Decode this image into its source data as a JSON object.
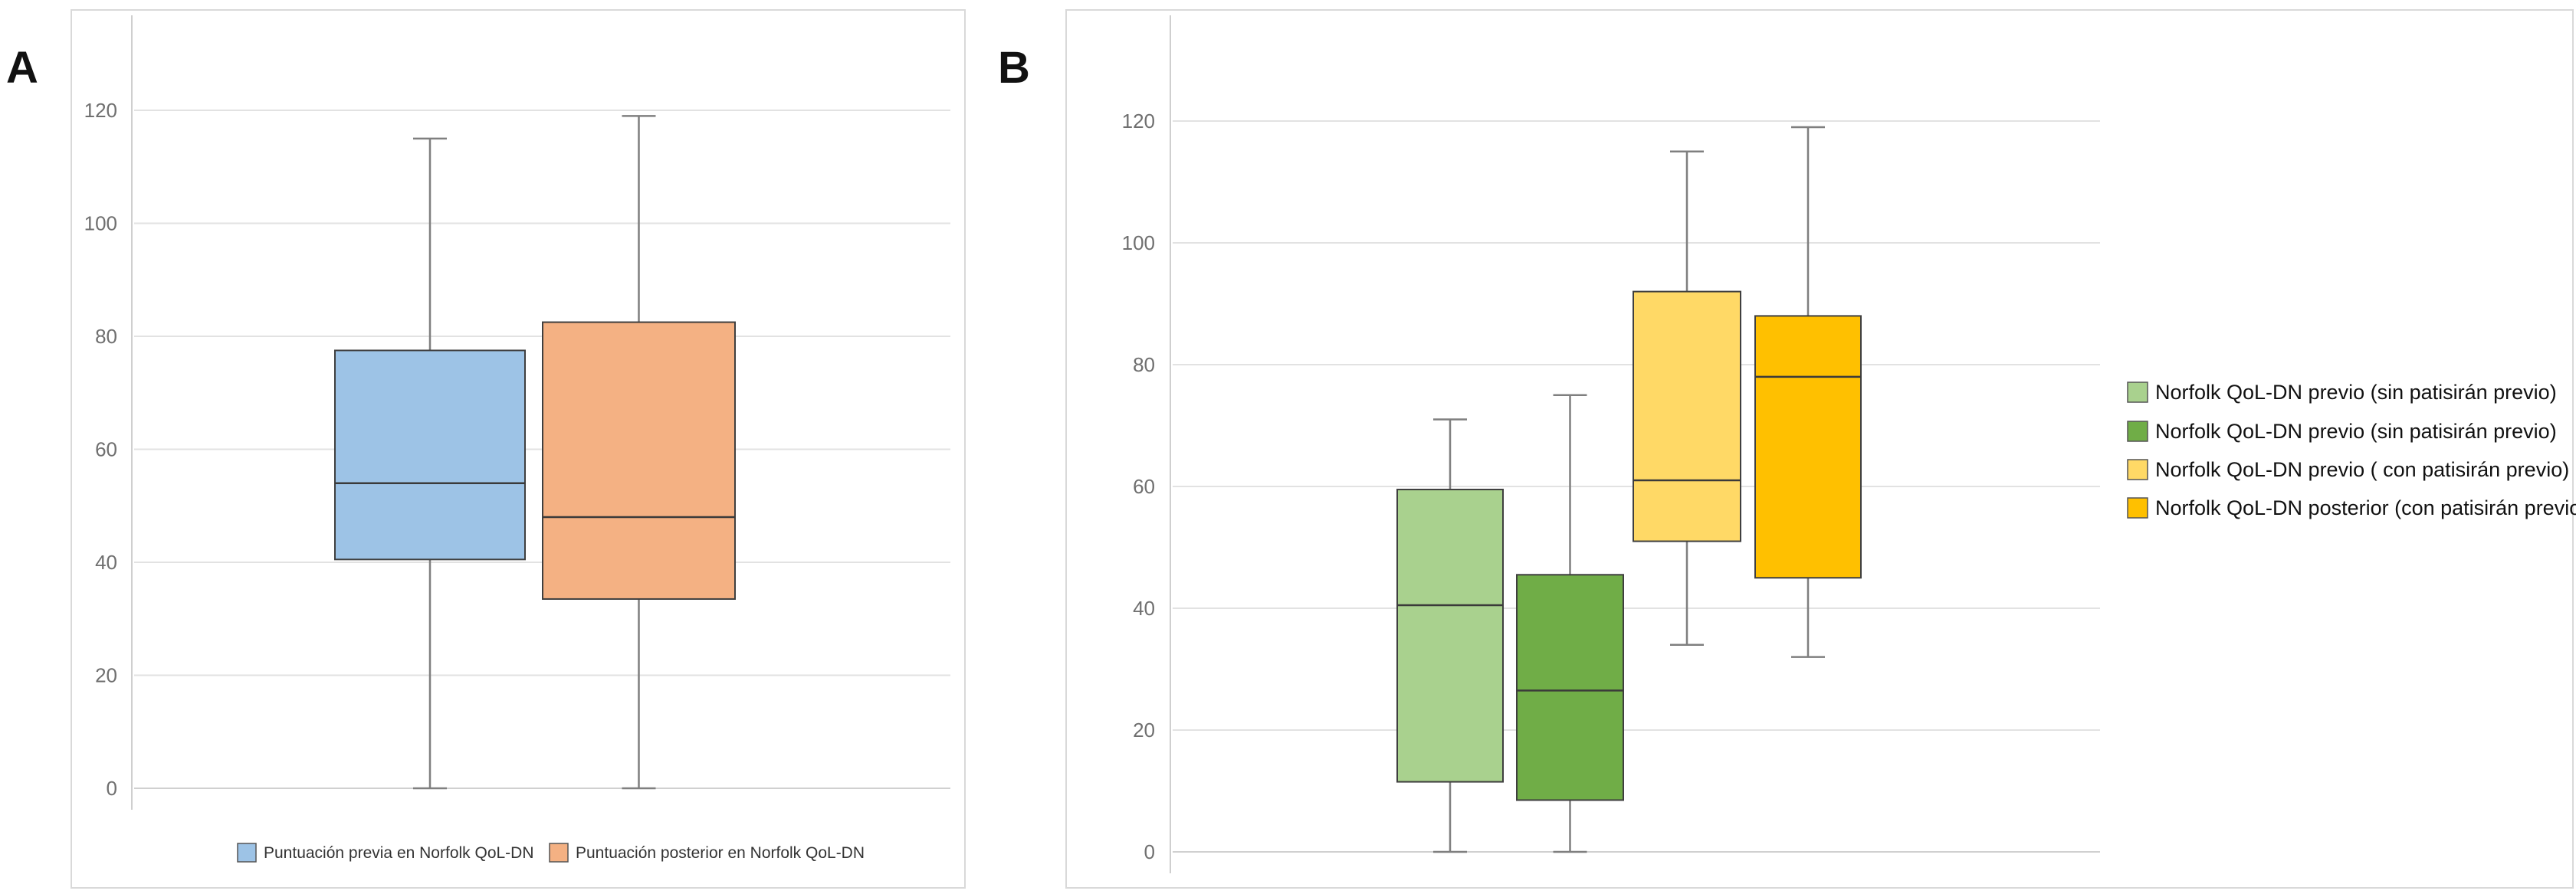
{
  "panels": {
    "a": {
      "letter": "A"
    },
    "b": {
      "letter": "B"
    }
  },
  "chart_data": [
    {
      "type": "boxplot",
      "panel": "A",
      "title": "",
      "ylim": [
        0,
        130
      ],
      "yticks": [
        0,
        20,
        40,
        60,
        80,
        100,
        120
      ],
      "grid": true,
      "legend_placement": "bottom",
      "series": [
        {
          "name": "Puntuación previa en Norfolk QoL-DN",
          "color": "#9dc3e6",
          "min": 0,
          "q1": 40.5,
          "median": 54,
          "q3": 77.5,
          "max": 115
        },
        {
          "name": "Puntuación posterior en Norfolk QoL-DN",
          "color": "#f4b183",
          "min": 0,
          "q1": 33.5,
          "median": 48,
          "q3": 82.5,
          "max": 119
        }
      ]
    },
    {
      "type": "boxplot",
      "panel": "B",
      "title": "",
      "ylim": [
        0,
        130
      ],
      "yticks": [
        0,
        20,
        40,
        60,
        80,
        100,
        120
      ],
      "grid": true,
      "legend_placement": "right",
      "series": [
        {
          "name": "Norfolk QoL-DN  previo (sin patisirán previo)",
          "color": "#a9d18e",
          "min": 0,
          "q1": 11.5,
          "median": 40.5,
          "q3": 59.5,
          "max": 71
        },
        {
          "name": "Norfolk QoL-DN previo (sin patisirán previo)",
          "color": "#70ad47",
          "min": 0,
          "q1": 8.5,
          "median": 26.5,
          "q3": 45.5,
          "max": 75
        },
        {
          "name": "Norfolk QoL-DN previo ( con patisirán previo)",
          "color": "#ffd966",
          "min": 34,
          "q1": 51,
          "median": 61,
          "q3": 92,
          "max": 115
        },
        {
          "name": "Norfolk QoL-DN posterior (con patisirán previo)",
          "color": "#ffc000",
          "min": 32,
          "q1": 45,
          "median": 78,
          "q3": 88,
          "max": 119
        }
      ]
    }
  ]
}
